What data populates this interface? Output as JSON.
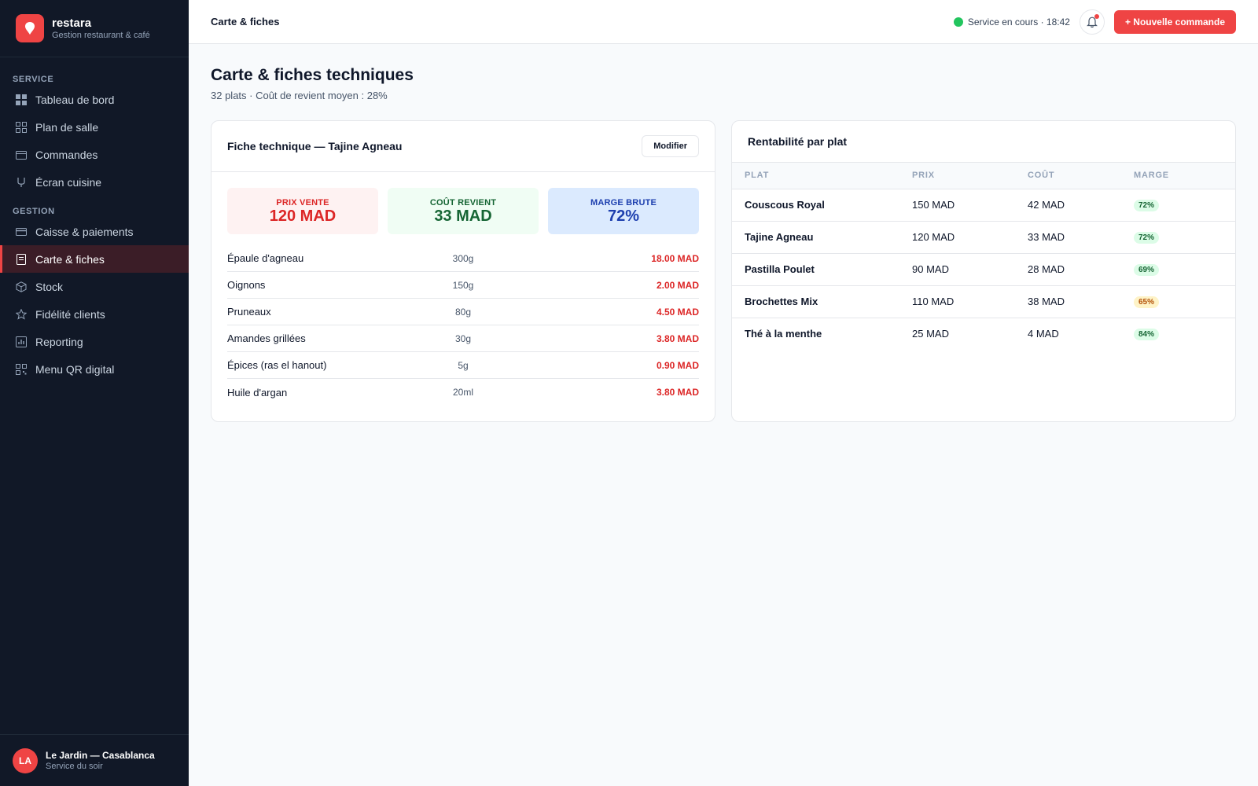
{
  "app": {
    "name": "restara",
    "subtitle": "Gestion restaurant & café"
  },
  "sidebar": {
    "section_service": "SERVICE",
    "service_items": [
      {
        "label": "Tableau de bord",
        "icon": "dashboard-icon"
      },
      {
        "label": "Plan de salle",
        "icon": "floor-plan-icon"
      },
      {
        "label": "Commandes",
        "icon": "orders-icon"
      },
      {
        "label": "Écran cuisine",
        "icon": "kitchen-icon"
      }
    ],
    "section_gestion": "GESTION",
    "gestion_items": [
      {
        "label": "Caisse & paiements",
        "icon": "card-icon"
      },
      {
        "label": "Carte & fiches",
        "icon": "menu-sheet-icon",
        "active": true
      },
      {
        "label": "Stock",
        "icon": "box-icon"
      },
      {
        "label": "Fidélité clients",
        "icon": "star-icon"
      },
      {
        "label": "Reporting",
        "icon": "chart-icon"
      },
      {
        "label": "Menu QR digital",
        "icon": "qr-icon"
      }
    ],
    "user": {
      "initials": "LA",
      "name": "Le Jardin — Casablanca",
      "role": "Service du soir"
    }
  },
  "topbar": {
    "title": "Carte & fiches",
    "status": "Service en cours · 18:42",
    "new_order_label": "+ Nouvelle commande"
  },
  "page": {
    "title": "Carte & fiches techniques",
    "subtitle": "32 plats · Coût de revient moyen : 28%"
  },
  "fiche": {
    "title": "Fiche technique — Tajine Agneau",
    "edit_label": "Modifier",
    "kpis": {
      "price_label": "PRIX VENTE",
      "price_value": "120 MAD",
      "cost_label": "COÛT REVIENT",
      "cost_value": "33 MAD",
      "margin_label": "MARGE BRUTE",
      "margin_value": "72%"
    },
    "ingredients": [
      {
        "name": "Épaule d'agneau",
        "qty": "300g",
        "cost": "18.00 MAD"
      },
      {
        "name": "Oignons",
        "qty": "150g",
        "cost": "2.00 MAD"
      },
      {
        "name": "Pruneaux",
        "qty": "80g",
        "cost": "4.50 MAD"
      },
      {
        "name": "Amandes grillées",
        "qty": "30g",
        "cost": "3.80 MAD"
      },
      {
        "name": "Épices (ras el hanout)",
        "qty": "5g",
        "cost": "0.90 MAD"
      },
      {
        "name": "Huile d'argan",
        "qty": "20ml",
        "cost": "3.80 MAD"
      }
    ]
  },
  "rentabilite": {
    "title": "Rentabilité par plat",
    "columns": [
      "PLAT",
      "PRIX",
      "COÛT",
      "MARGE"
    ],
    "rows": [
      {
        "plat": "Couscous Royal",
        "prix": "150 MAD",
        "cout": "42 MAD",
        "marge": "72%",
        "level": "good"
      },
      {
        "plat": "Tajine Agneau",
        "prix": "120 MAD",
        "cout": "33 MAD",
        "marge": "72%",
        "level": "good"
      },
      {
        "plat": "Pastilla Poulet",
        "prix": "90 MAD",
        "cout": "28 MAD",
        "marge": "69%",
        "level": "good"
      },
      {
        "plat": "Brochettes Mix",
        "prix": "110 MAD",
        "cout": "38 MAD",
        "marge": "65%",
        "level": "warn"
      },
      {
        "plat": "Thé à la menthe",
        "prix": "25 MAD",
        "cout": "4 MAD",
        "marge": "84%",
        "level": "good"
      }
    ]
  },
  "colors": {
    "accent": "#ef4444",
    "sidebar_bg": "#111827",
    "status_ok": "#22c55e"
  }
}
